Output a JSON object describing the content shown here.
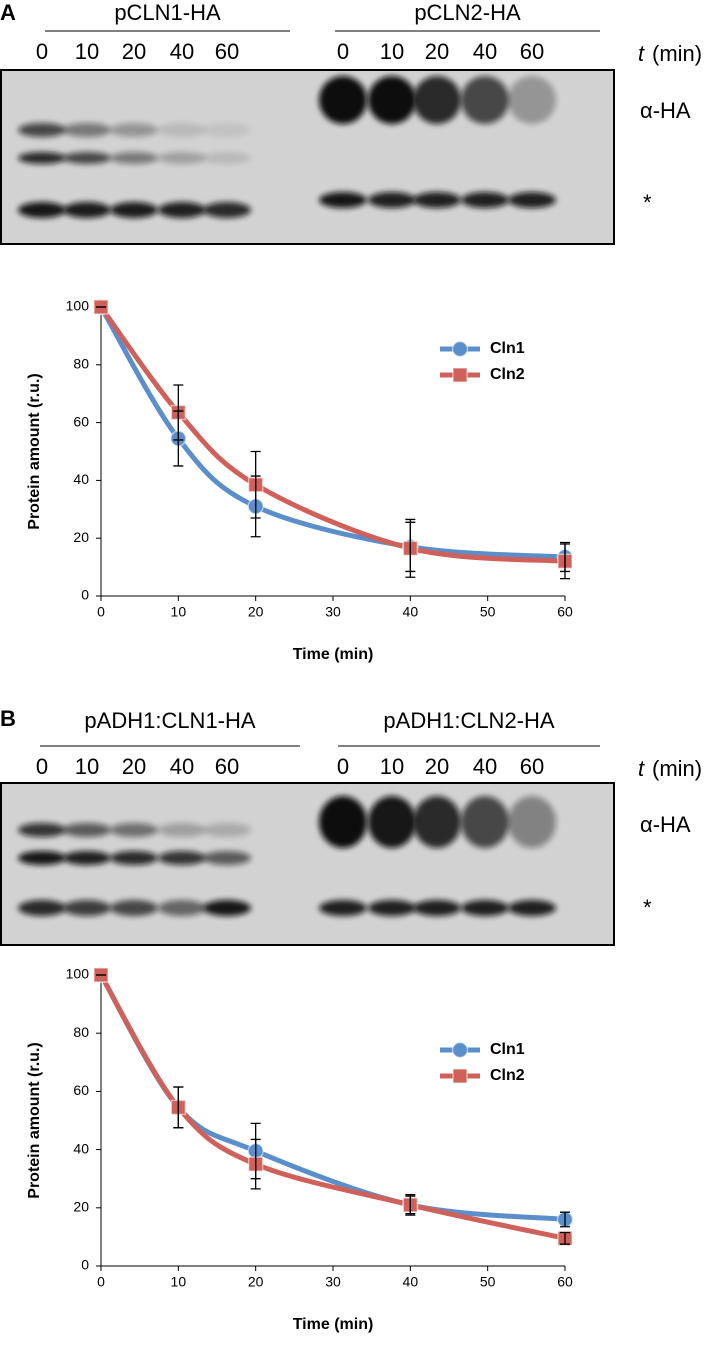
{
  "panels": [
    {
      "label": "A",
      "blot": {
        "groups": [
          {
            "name": "pCLN1-HA",
            "times": [
              0,
              10,
              20,
              40,
              60
            ]
          },
          {
            "name": "pCLN2-HA",
            "times": [
              0,
              10,
              20,
              40,
              60
            ]
          }
        ],
        "time_var": "t",
        "time_unit": "(min)",
        "band_labels": [
          "α-HA",
          "*"
        ]
      }
    },
    {
      "label": "B",
      "blot": {
        "groups": [
          {
            "name": "pADH1:CLN1-HA",
            "times": [
              0,
              10,
              20,
              40,
              60
            ]
          },
          {
            "name": "pADH1:CLN2-HA",
            "times": [
              0,
              10,
              20,
              40,
              60
            ]
          }
        ],
        "time_var": "t",
        "time_unit": "(min)",
        "band_labels": [
          "α-HA",
          "*"
        ]
      }
    }
  ],
  "chart_data": [
    {
      "type": "line",
      "xlabel": "Time (min)",
      "ylabel": "Protein amount (r.u.)",
      "x": [
        0,
        10,
        20,
        40,
        60
      ],
      "xlim": [
        0,
        60
      ],
      "xticks": [
        0,
        10,
        20,
        30,
        40,
        50,
        60
      ],
      "ylim": [
        0,
        100
      ],
      "yticks": [
        0,
        20,
        40,
        60,
        80,
        100
      ],
      "grid": false,
      "legend": "upper right",
      "smooth": true,
      "series": [
        {
          "name": "Cln1",
          "color": "#5b8fcc",
          "marker": "circle",
          "values": [
            100,
            54.5,
            31,
            17,
            13.5
          ],
          "errors": [
            0,
            9.5,
            10.5,
            8.5,
            5
          ]
        },
        {
          "name": "Cln2",
          "color": "#d0605a",
          "marker": "square",
          "values": [
            100,
            63.5,
            38.5,
            16.5,
            12
          ],
          "errors": [
            0,
            9.5,
            11.5,
            10,
            6
          ]
        }
      ]
    },
    {
      "type": "line",
      "xlabel": "Time (min)",
      "ylabel": "Protein amount (r.u.)",
      "x": [
        0,
        10,
        20,
        40,
        60
      ],
      "xlim": [
        0,
        60
      ],
      "xticks": [
        0,
        10,
        20,
        30,
        40,
        50,
        60
      ],
      "ylim": [
        0,
        100
      ],
      "yticks": [
        0,
        20,
        40,
        60,
        80,
        100
      ],
      "grid": false,
      "legend": "center right",
      "smooth": true,
      "series": [
        {
          "name": "Cln1",
          "color": "#5b8fcc",
          "marker": "circle",
          "values": [
            100,
            54.5,
            39.5,
            21,
            16
          ],
          "errors": [
            0,
            7,
            9.5,
            3.5,
            2.5
          ]
        },
        {
          "name": "Cln2",
          "color": "#d0605a",
          "marker": "square",
          "values": [
            100,
            54.5,
            35,
            21,
            9.5
          ],
          "errors": [
            0,
            7,
            8.5,
            3,
            2
          ]
        }
      ]
    }
  ]
}
